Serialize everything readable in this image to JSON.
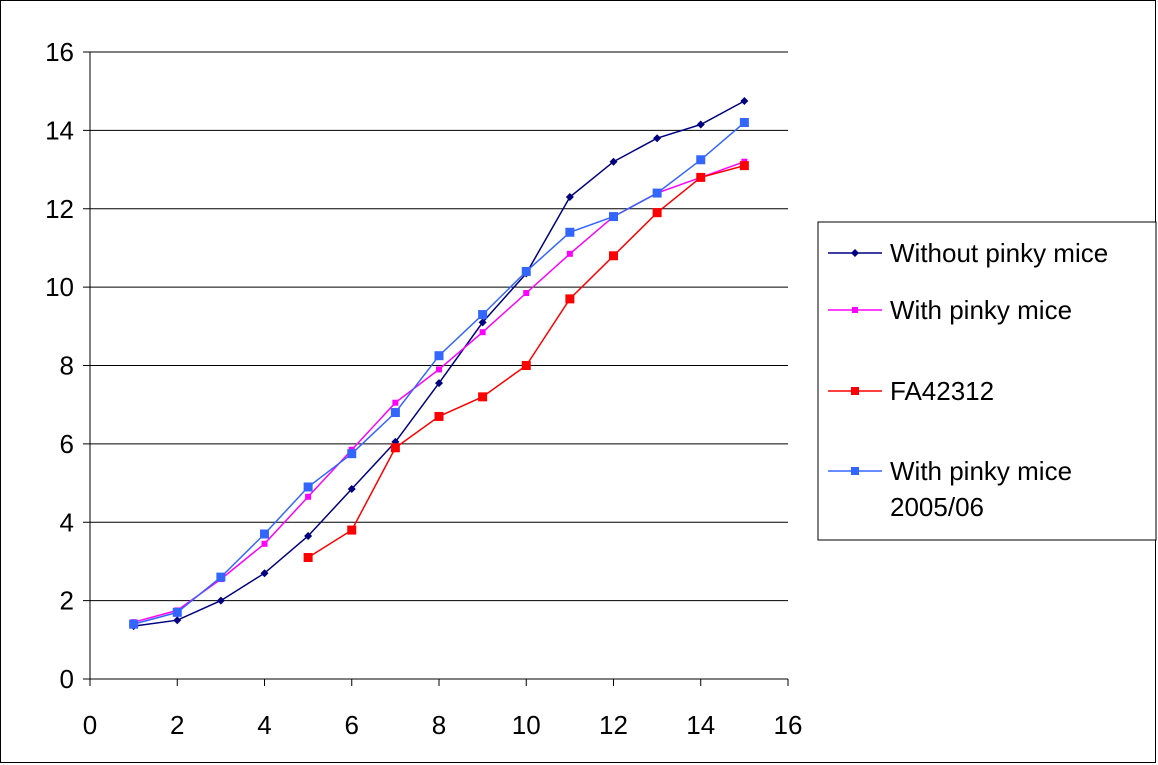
{
  "chart_data": {
    "type": "line",
    "title": "",
    "xlabel": "",
    "ylabel": "",
    "xlim": [
      0,
      16
    ],
    "ylim": [
      0,
      16
    ],
    "xticks": [
      0,
      2,
      4,
      6,
      8,
      10,
      12,
      14,
      16
    ],
    "yticks": [
      0,
      2,
      4,
      6,
      8,
      10,
      12,
      14,
      16
    ],
    "grid": "horizontal",
    "legend_position": "right",
    "series": [
      {
        "name": "Without pinky mice",
        "color": "#000080",
        "marker": "diamond",
        "points": [
          [
            1,
            1.35
          ],
          [
            2,
            1.5
          ],
          [
            3,
            2.0
          ],
          [
            4,
            2.7
          ],
          [
            5,
            3.65
          ],
          [
            6,
            4.85
          ],
          [
            7,
            6.05
          ],
          [
            8,
            7.55
          ],
          [
            9,
            9.1
          ],
          [
            10,
            10.35
          ],
          [
            11,
            12.3
          ],
          [
            12,
            13.2
          ],
          [
            13,
            13.8
          ],
          [
            14,
            14.15
          ],
          [
            15,
            14.75
          ]
        ]
      },
      {
        "name": "With pinky mice",
        "color": "#FF00FF",
        "marker": "square-small",
        "points": [
          [
            1,
            1.45
          ],
          [
            2,
            1.75
          ],
          [
            3,
            2.55
          ],
          [
            4,
            3.45
          ],
          [
            5,
            4.65
          ],
          [
            6,
            5.85
          ],
          [
            7,
            7.05
          ],
          [
            8,
            7.9
          ],
          [
            9,
            8.85
          ],
          [
            10,
            9.85
          ],
          [
            11,
            10.85
          ],
          [
            12,
            11.8
          ],
          [
            13,
            12.4
          ],
          [
            14,
            12.8
          ],
          [
            15,
            13.2
          ]
        ]
      },
      {
        "name": "FA42312",
        "color": "#FF0000",
        "marker": "square",
        "points": [
          [
            5,
            3.1
          ],
          [
            6,
            3.8
          ],
          [
            7,
            5.9
          ],
          [
            8,
            6.7
          ],
          [
            9,
            7.2
          ],
          [
            10,
            8.0
          ],
          [
            11,
            9.7
          ],
          [
            12,
            10.8
          ],
          [
            13,
            11.9
          ],
          [
            14,
            12.8
          ],
          [
            15,
            13.1
          ]
        ]
      },
      {
        "name": "With pinky mice 2005/06",
        "legend_lines": [
          "With pinky mice",
          "2005/06"
        ],
        "color": "#3366FF",
        "marker": "square",
        "points": [
          [
            1,
            1.4
          ],
          [
            2,
            1.7
          ],
          [
            3,
            2.6
          ],
          [
            4,
            3.7
          ],
          [
            5,
            4.9
          ],
          [
            6,
            5.75
          ],
          [
            7,
            6.8
          ],
          [
            8,
            8.25
          ],
          [
            9,
            9.3
          ],
          [
            10,
            10.4
          ],
          [
            11,
            11.4
          ],
          [
            12,
            11.8
          ],
          [
            13,
            12.4
          ],
          [
            14,
            13.25
          ],
          [
            15,
            14.2
          ]
        ]
      }
    ]
  }
}
